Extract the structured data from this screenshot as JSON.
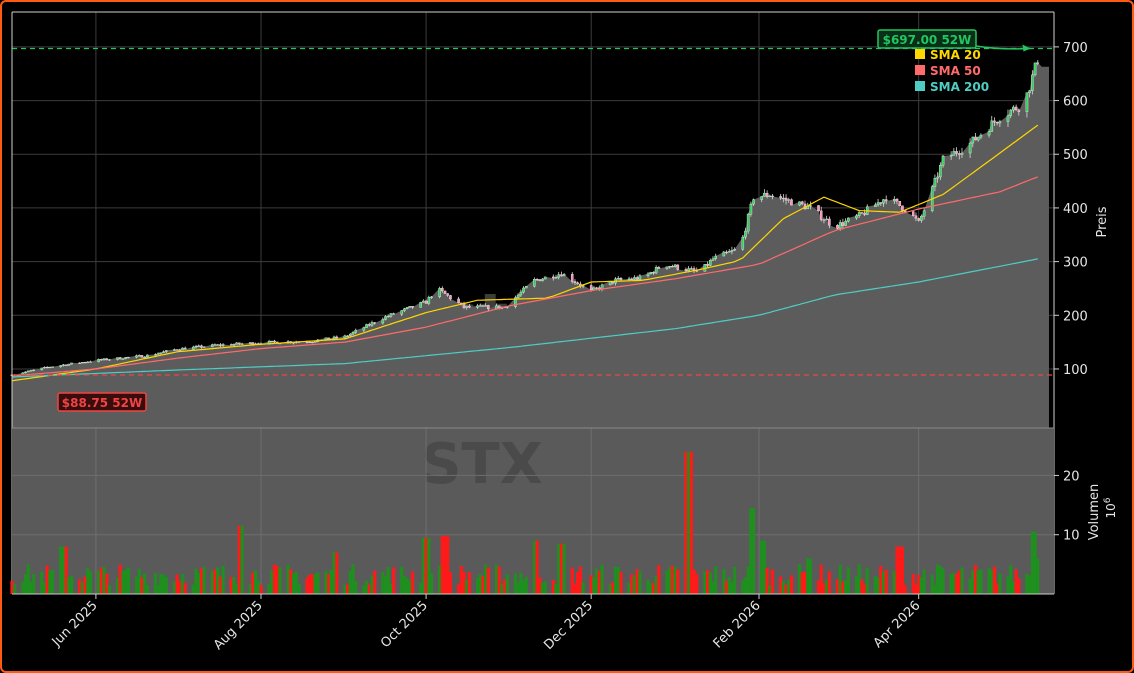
{
  "chart_data": {
    "type": "candlestick",
    "ticker": "STX",
    "watermark": "stooom.com",
    "price_axis_label": "Preis",
    "volume_axis_label": "Volumen",
    "volume_axis_exponent": "10^6",
    "volume_axis_exponent_base": "10",
    "volume_axis_exponent_power": "6",
    "x_ticks": [
      {
        "date": "2025-06-01",
        "label": "Jun 2025"
      },
      {
        "date": "2025-08-01",
        "label": "Aug 2025"
      },
      {
        "date": "2025-10-01",
        "label": "Oct 2025"
      },
      {
        "date": "2025-12-01",
        "label": "Dec 2025"
      },
      {
        "date": "2026-02-01",
        "label": "Feb 2026"
      },
      {
        "date": "2026-04-01",
        "label": "Apr 2026"
      }
    ],
    "x_range": [
      "2025-05-01",
      "2026-05-21"
    ],
    "price_ticks": [
      100,
      200,
      300,
      400,
      500,
      600,
      700
    ],
    "price_range": [
      -10,
      765
    ],
    "volume_ticks": [
      10,
      20
    ],
    "volume_range": [
      0,
      28
    ],
    "high_52w": {
      "value": 697.0,
      "label": "$697.00 52W",
      "color": "#22c55e"
    },
    "low_52w": {
      "value": 88.75,
      "label": "$88.75 52W",
      "color": "#ef4444"
    },
    "last_close_band": 663,
    "legend": [
      {
        "name": "SMA 20",
        "color": "#ffd700"
      },
      {
        "name": "SMA 50",
        "color": "#ff6b6b"
      },
      {
        "name": "SMA 200",
        "color": "#4ecdc4"
      }
    ],
    "close_anchors": [
      [
        "2025-05-01",
        89
      ],
      [
        "2025-05-15",
        104
      ],
      [
        "2025-06-01",
        116
      ],
      [
        "2025-06-20",
        125
      ],
      [
        "2025-07-01",
        137
      ],
      [
        "2025-07-15",
        144
      ],
      [
        "2025-08-01",
        149
      ],
      [
        "2025-08-20",
        152
      ],
      [
        "2025-09-01",
        160
      ],
      [
        "2025-09-15",
        195
      ],
      [
        "2025-10-01",
        225
      ],
      [
        "2025-10-05",
        250
      ],
      [
        "2025-10-15",
        215
      ],
      [
        "2025-10-30",
        215
      ],
      [
        "2025-11-10",
        265
      ],
      [
        "2025-11-20",
        278
      ],
      [
        "2025-12-01",
        245
      ],
      [
        "2025-12-10",
        265
      ],
      [
        "2025-12-20",
        270
      ],
      [
        "2025-12-28",
        295
      ],
      [
        "2026-01-10",
        280
      ],
      [
        "2026-01-15",
        305
      ],
      [
        "2026-01-25",
        325
      ],
      [
        "2026-01-30",
        420
      ],
      [
        "2026-02-05",
        425
      ],
      [
        "2026-02-20",
        400
      ],
      [
        "2026-03-01",
        365
      ],
      [
        "2026-03-10",
        385
      ],
      [
        "2026-03-20",
        420
      ],
      [
        "2026-03-28",
        395
      ],
      [
        "2026-04-01",
        372
      ],
      [
        "2026-04-05",
        420
      ],
      [
        "2026-04-10",
        490
      ],
      [
        "2026-04-20",
        520
      ],
      [
        "2026-05-01",
        570
      ],
      [
        "2026-05-10",
        595
      ],
      [
        "2026-05-14",
        660
      ],
      [
        "2026-05-16",
        697
      ]
    ],
    "sma20_anchors": [
      [
        "2025-05-01",
        78
      ],
      [
        "2025-06-01",
        100
      ],
      [
        "2025-07-01",
        132
      ],
      [
        "2025-08-01",
        146
      ],
      [
        "2025-09-01",
        156
      ],
      [
        "2025-10-01",
        205
      ],
      [
        "2025-10-20",
        228
      ],
      [
        "2025-11-15",
        232
      ],
      [
        "2025-12-01",
        262
      ],
      [
        "2025-12-20",
        265
      ],
      [
        "2026-01-10",
        285
      ],
      [
        "2026-01-25",
        302
      ],
      [
        "2026-02-10",
        380
      ],
      [
        "2026-02-25",
        420
      ],
      [
        "2026-03-10",
        395
      ],
      [
        "2026-03-25",
        392
      ],
      [
        "2026-04-10",
        425
      ],
      [
        "2026-04-25",
        480
      ],
      [
        "2026-05-16",
        558
      ]
    ],
    "sma50_anchors": [
      [
        "2025-05-01",
        87
      ],
      [
        "2025-06-01",
        100
      ],
      [
        "2025-07-01",
        120
      ],
      [
        "2025-08-01",
        138
      ],
      [
        "2025-09-01",
        150
      ],
      [
        "2025-10-01",
        178
      ],
      [
        "2025-11-01",
        218
      ],
      [
        "2025-12-01",
        246
      ],
      [
        "2026-01-01",
        268
      ],
      [
        "2026-02-01",
        295
      ],
      [
        "2026-03-01",
        358
      ],
      [
        "2026-04-01",
        398
      ],
      [
        "2026-05-01",
        430
      ],
      [
        "2026-05-16",
        460
      ]
    ],
    "sma200_anchors": [
      [
        "2025-05-01",
        85
      ],
      [
        "2025-07-01",
        98
      ],
      [
        "2025-09-01",
        110
      ],
      [
        "2025-11-01",
        140
      ],
      [
        "2026-01-01",
        175
      ],
      [
        "2026-02-01",
        200
      ],
      [
        "2026-03-01",
        238
      ],
      [
        "2026-04-01",
        262
      ],
      [
        "2026-05-16",
        306
      ]
    ],
    "volume_spikes": [
      [
        "2025-05-20",
        8
      ],
      [
        "2025-07-25",
        11.5
      ],
      [
        "2025-08-29",
        7
      ],
      [
        "2025-10-01",
        9.5
      ],
      [
        "2025-10-08",
        9.8
      ],
      [
        "2025-11-10",
        9
      ],
      [
        "2025-11-20",
        8.5
      ],
      [
        "2026-01-06",
        24
      ],
      [
        "2026-01-30",
        14.5
      ],
      [
        "2026-02-02",
        9
      ],
      [
        "2026-02-20",
        6
      ],
      [
        "2026-03-25",
        8
      ],
      [
        "2026-05-14",
        10.5
      ],
      [
        "2026-05-16",
        6
      ]
    ]
  }
}
